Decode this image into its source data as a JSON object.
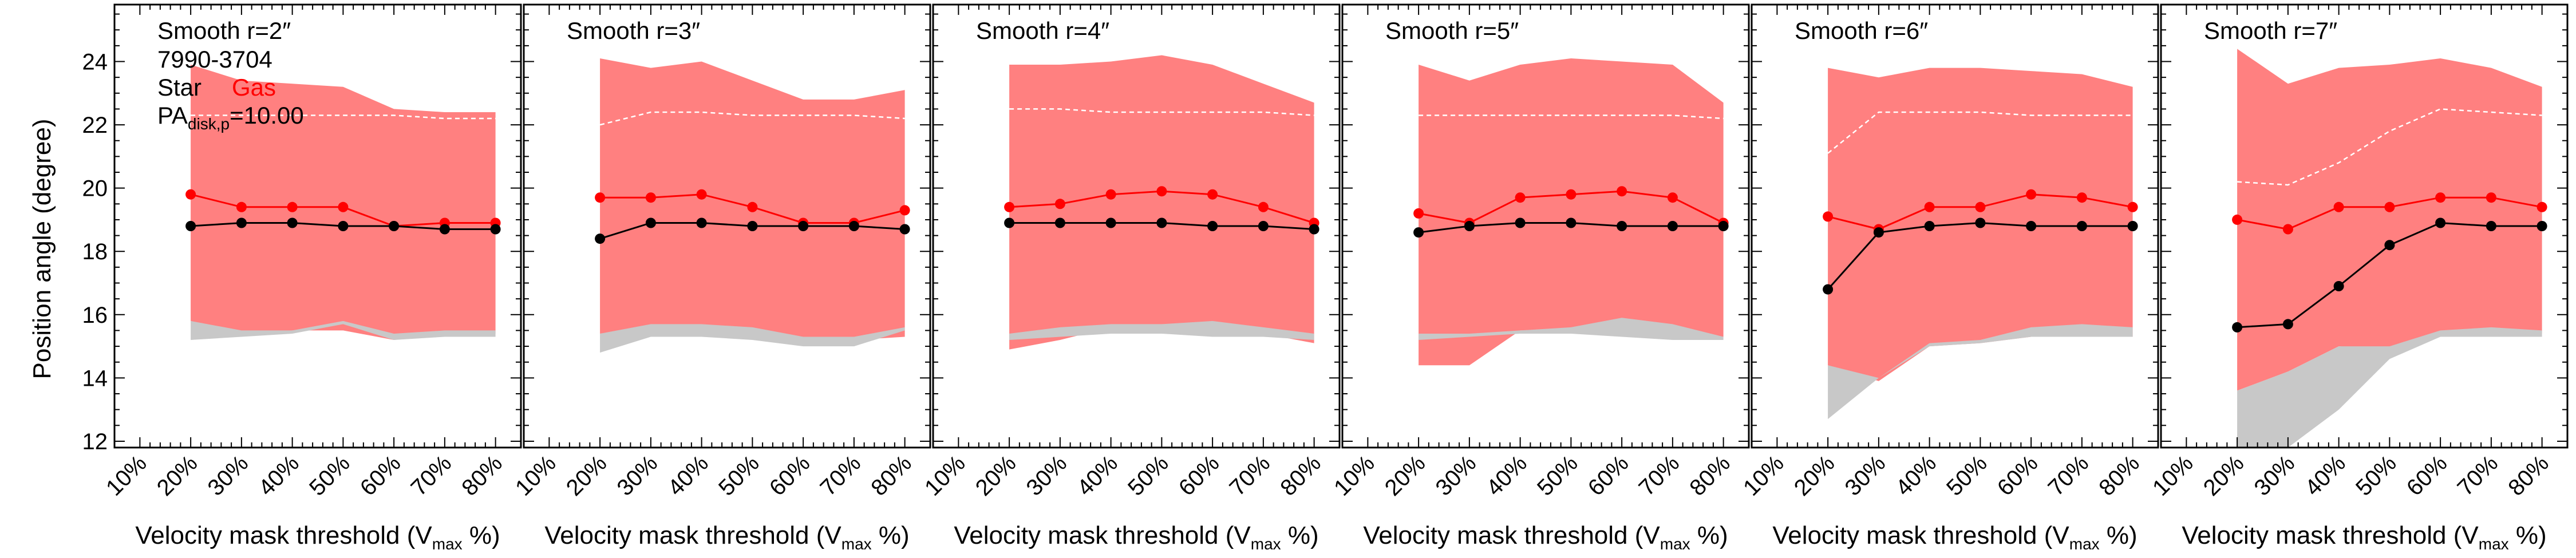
{
  "chart_data": {
    "type": "line",
    "ylabel": "Position angle (degree)",
    "xlabel_main": "Velocity mask threshold (V",
    "xlabel_sub": "max",
    "xlabel_tail": " %)",
    "x_tick_labels": [
      "10%",
      "20%",
      "30%",
      "40%",
      "50%",
      "60%",
      "70%",
      "80%"
    ],
    "x_values": [
      20,
      30,
      40,
      50,
      60,
      70,
      80
    ],
    "xlim": [
      5,
      85
    ],
    "ylim": [
      11.8,
      25.8
    ],
    "y_ticks": [
      12,
      14,
      16,
      18,
      20,
      22,
      24
    ],
    "legend": {
      "galaxy_id": "7990-3704",
      "star_label": "Star",
      "gas_label": "Gas",
      "pa_prefix": "PA",
      "pa_sub": "disk,p",
      "pa_value": "=10.00"
    },
    "colors": {
      "star": "#000000",
      "gas": "#ff0000",
      "gas_band": "#ff8080",
      "star_band": "#c8c8c8",
      "dashed": "#ffffff"
    },
    "panels": [
      {
        "title": "Smooth r=2″",
        "star": [
          18.8,
          18.9,
          18.9,
          18.8,
          18.8,
          18.7,
          18.7
        ],
        "gas": [
          19.8,
          19.4,
          19.4,
          19.4,
          18.8,
          18.9,
          18.9
        ],
        "gas_band": {
          "lo": [
            15.8,
            15.4,
            15.5,
            15.5,
            15.2,
            15.4,
            15.4
          ],
          "hi": [
            23.9,
            23.4,
            23.3,
            23.2,
            22.5,
            22.4,
            22.4
          ]
        },
        "star_band": {
          "lo": [
            15.2,
            15.3,
            15.4,
            15.7,
            15.2,
            15.3,
            15.3
          ],
          "hi": [
            15.8,
            15.5,
            15.5,
            15.8,
            15.4,
            15.5,
            15.5
          ]
        },
        "dashed": [
          22.3,
          22.3,
          22.3,
          22.3,
          22.3,
          22.2,
          22.2
        ]
      },
      {
        "title": "Smooth r=3″",
        "star": [
          18.4,
          18.9,
          18.9,
          18.8,
          18.8,
          18.8,
          18.7
        ],
        "gas": [
          19.7,
          19.7,
          19.8,
          19.4,
          18.9,
          18.9,
          19.3
        ],
        "gas_band": {
          "lo": [
            15.4,
            15.6,
            15.5,
            15.4,
            15.2,
            15.2,
            15.3
          ],
          "hi": [
            24.1,
            23.8,
            24.0,
            23.4,
            22.8,
            22.8,
            23.1
          ]
        },
        "star_band": {
          "lo": [
            14.8,
            15.3,
            15.3,
            15.2,
            15.0,
            15.0,
            15.5
          ],
          "hi": [
            15.4,
            15.7,
            15.7,
            15.6,
            15.3,
            15.3,
            15.6
          ]
        },
        "dashed": [
          22.0,
          22.4,
          22.4,
          22.3,
          22.3,
          22.3,
          22.2
        ]
      },
      {
        "title": "Smooth r=4″",
        "star": [
          18.9,
          18.9,
          18.9,
          18.9,
          18.8,
          18.8,
          18.7
        ],
        "gas": [
          19.4,
          19.5,
          19.8,
          19.9,
          19.8,
          19.4,
          18.9
        ],
        "gas_band": {
          "lo": [
            14.9,
            15.2,
            15.6,
            15.5,
            15.6,
            15.4,
            15.1
          ],
          "hi": [
            23.9,
            23.9,
            24.0,
            24.2,
            23.9,
            23.3,
            22.7
          ]
        },
        "star_band": {
          "lo": [
            15.2,
            15.3,
            15.4,
            15.4,
            15.3,
            15.3,
            15.2
          ],
          "hi": [
            15.4,
            15.6,
            15.7,
            15.7,
            15.8,
            15.6,
            15.4
          ]
        },
        "dashed": [
          22.5,
          22.5,
          22.4,
          22.4,
          22.4,
          22.4,
          22.3
        ]
      },
      {
        "title": "Smooth r=5″",
        "star": [
          18.6,
          18.8,
          18.9,
          18.9,
          18.8,
          18.8,
          18.8
        ],
        "gas": [
          19.2,
          18.9,
          19.7,
          19.8,
          19.9,
          19.7,
          18.9
        ],
        "gas_band": {
          "lo": [
            14.4,
            14.4,
            15.5,
            15.5,
            15.6,
            15.5,
            15.3
          ],
          "hi": [
            23.9,
            23.4,
            23.9,
            24.1,
            24.0,
            23.9,
            22.7
          ]
        },
        "star_band": {
          "lo": [
            15.2,
            15.3,
            15.4,
            15.4,
            15.3,
            15.2,
            15.2
          ],
          "hi": [
            15.4,
            15.4,
            15.5,
            15.6,
            15.9,
            15.7,
            15.3
          ]
        },
        "dashed": [
          22.3,
          22.3,
          22.3,
          22.3,
          22.3,
          22.3,
          22.2
        ]
      },
      {
        "title": "Smooth r=6″",
        "star": [
          16.8,
          18.6,
          18.8,
          18.9,
          18.8,
          18.8,
          18.8
        ],
        "gas": [
          19.1,
          18.7,
          19.4,
          19.4,
          19.8,
          19.7,
          19.4
        ],
        "gas_band": {
          "lo": [
            14.4,
            13.9,
            15.0,
            15.1,
            15.3,
            15.3,
            15.3
          ],
          "hi": [
            23.8,
            23.5,
            23.8,
            23.8,
            23.7,
            23.6,
            23.2
          ]
        },
        "star_band": {
          "lo": [
            12.7,
            14.0,
            15.0,
            15.1,
            15.3,
            15.3,
            15.3
          ],
          "hi": [
            14.4,
            14.0,
            15.1,
            15.2,
            15.6,
            15.7,
            15.6
          ]
        },
        "dashed": [
          21.1,
          22.4,
          22.4,
          22.4,
          22.3,
          22.3,
          22.3
        ]
      },
      {
        "title": "Smooth r=7″",
        "star": [
          15.6,
          15.7,
          16.9,
          18.2,
          18.9,
          18.8,
          18.8
        ],
        "gas": [
          19.0,
          18.7,
          19.4,
          19.4,
          19.7,
          19.7,
          19.4
        ],
        "gas_band": {
          "lo": [
            13.6,
            14.2,
            15.0,
            14.9,
            15.3,
            15.5,
            15.4
          ],
          "hi": [
            24.4,
            23.3,
            23.8,
            23.9,
            24.1,
            23.8,
            23.2
          ]
        },
        "star_band": {
          "lo": [
            11.8,
            11.8,
            13.0,
            14.6,
            15.3,
            15.3,
            15.3
          ],
          "hi": [
            13.6,
            14.2,
            15.0,
            15.0,
            15.5,
            15.6,
            15.5
          ]
        },
        "dashed": [
          20.2,
          20.1,
          20.8,
          21.8,
          22.5,
          22.4,
          22.3
        ]
      }
    ]
  }
}
